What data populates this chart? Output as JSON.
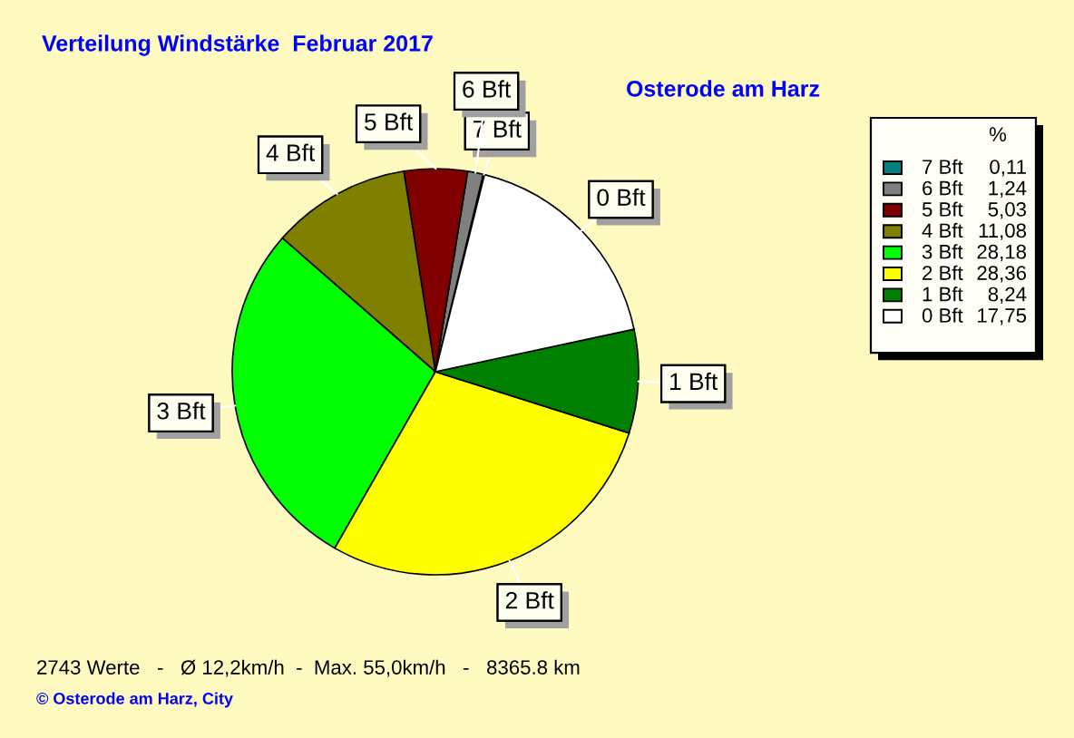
{
  "chart_data": {
    "type": "pie",
    "title": "Verteilung Windstärke  Februar 2017",
    "subtitle": "Osterode am Harz",
    "legend_title": "%",
    "categories": [
      "7 Bft",
      "6 Bft",
      "5 Bft",
      "4 Bft",
      "3 Bft",
      "2 Bft",
      "1 Bft",
      "0 Bft"
    ],
    "values": [
      0.11,
      1.24,
      5.03,
      11.08,
      28.18,
      28.36,
      8.24,
      17.75
    ],
    "value_labels": [
      "0,11",
      "1,24",
      "5,03",
      "11,08",
      "28,18",
      "28,36",
      "8,24",
      "17,75"
    ],
    "colors": [
      "#008080",
      "#808080",
      "#800000",
      "#808000",
      "#00ff00",
      "#ffff00",
      "#008000",
      "#ffffff"
    ],
    "legend": "top right",
    "annotations": [
      "2743 Werte   -   Ø 12,2km/h  -  Max. 55,0km/h   -   8365.8 km",
      "© Osterode am Harz, City"
    ]
  }
}
